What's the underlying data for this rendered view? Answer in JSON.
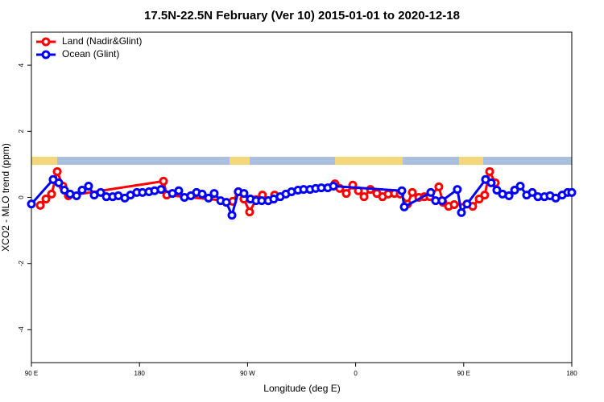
{
  "chart_data": {
    "type": "line",
    "title": "17.5N-22.5N February (Ver 10)   2015-01-01 to 2020-12-18",
    "x_label": "Longitude (deg E)",
    "y_label": "XCO2 - MLO trend (ppm)",
    "xlim": [
      90,
      540
    ],
    "xticks": [
      {
        "value": 90,
        "label": "90 E"
      },
      {
        "value": 180,
        "label": "180"
      },
      {
        "value": 270,
        "label": "90 W"
      },
      {
        "value": 360,
        "label": "0"
      },
      {
        "value": 450,
        "label": "90 E"
      },
      {
        "value": 540,
        "label": "180"
      }
    ],
    "ylim": [
      -5,
      5
    ],
    "yticks": [
      -4,
      -2,
      0,
      2,
      4
    ],
    "legend": "top-left",
    "series": [
      {
        "name": "Land (Nadir&Glint)",
        "color": "#ff0000",
        "x": [
          97.4,
          102.1,
          106.8,
          111.5,
          116.2,
          120.8,
          200,
          202.7,
          257.7,
          262.3,
          267,
          271.7,
          277.1,
          282.4,
          287.2,
          292.5,
          342.8,
          346.8,
          352.2,
          357.6,
          362.3,
          367,
          372.3,
          377.7,
          382.4,
          387.1,
          392.4,
          397.1,
          403.2,
          407.2,
          412.6,
          417.2,
          421.9,
          429.3,
          432.7,
          437.4,
          442.1,
          452.8,
          457.5,
          462.9,
          467.5,
          471.6,
          476.3
        ],
        "values": [
          -0.24,
          -0.05,
          0.1,
          0.78,
          0.34,
          0.05,
          0.49,
          0.07,
          -0.12,
          0.17,
          -0.05,
          -0.44,
          -0.07,
          0.07,
          -0.1,
          0.07,
          0.41,
          0.27,
          0.12,
          0.37,
          0.2,
          0.02,
          0.24,
          0.12,
          0.02,
          0.1,
          0.12,
          0.1,
          -0.2,
          0.15,
          0,
          0.02,
          0.02,
          0.32,
          -0.15,
          -0.27,
          -0.22,
          -0.2,
          -0.27,
          -0.05,
          0.07,
          0.78,
          0.44
        ]
      },
      {
        "name": "Ocean (Glint)",
        "color": "#0000ff",
        "x": [
          90,
          108.1,
          112.8,
          117.5,
          122.2,
          127.6,
          132.2,
          137.6,
          142.3,
          147.7,
          152.4,
          157.7,
          162.4,
          167.8,
          172.5,
          177.8,
          182.5,
          187.9,
          192.6,
          198,
          207.4,
          212.7,
          217.4,
          222.8,
          227.5,
          232.2,
          237.5,
          242.2,
          247.6,
          252.3,
          257,
          262.3,
          267,
          272.4,
          277.1,
          281.8,
          287.2,
          291.8,
          297.2,
          301.9,
          306.6,
          312,
          316.7,
          322,
          326.7,
          331.4,
          336.8,
          341.5,
          398.5,
          400.5,
          422.6,
          426.6,
          432,
          444.7,
          448.1,
          452.8,
          468.2,
          472.9,
          477.6,
          482.3,
          487.7,
          492.4,
          497.1,
          502.4,
          507.1,
          511.8,
          517.2,
          521.9,
          526.6,
          532,
          536.6,
          540
        ],
        "values": [
          -0.2,
          0.54,
          0.44,
          0.22,
          0.1,
          0.05,
          0.22,
          0.34,
          0.07,
          0.15,
          0.02,
          0.02,
          0.05,
          -0.02,
          0.07,
          0.15,
          0.15,
          0.17,
          0.2,
          0.24,
          0.12,
          0.2,
          0,
          0.05,
          0.15,
          0.1,
          -0.02,
          0.12,
          -0.1,
          -0.15,
          -0.54,
          0.17,
          0.12,
          -0.05,
          -0.1,
          -0.1,
          -0.1,
          -0.05,
          0.02,
          0.1,
          0.17,
          0.22,
          0.24,
          0.24,
          0.27,
          0.29,
          0.29,
          0.34,
          0.2,
          -0.29,
          0.15,
          -0.1,
          -0.1,
          0.24,
          -0.46,
          -0.2,
          0.54,
          0.44,
          0.22,
          0.1,
          0.05,
          0.22,
          0.34,
          0.07,
          0.15,
          0.02,
          0.02,
          0.05,
          -0.02,
          0.07,
          0.15,
          0.15
        ]
      }
    ]
  }
}
